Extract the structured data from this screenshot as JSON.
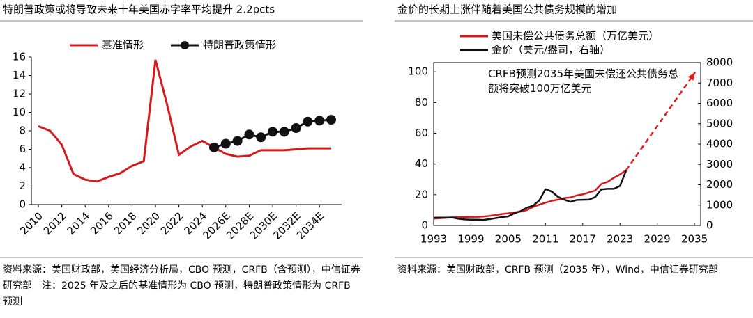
{
  "chart_data": [
    {
      "type": "line",
      "title": "特朗普政策或将导致未来十年美国赤字率平均提升 2.2pcts",
      "categories": [
        "2010",
        null,
        "2012",
        null,
        "2014",
        null,
        "2016",
        null,
        "2018",
        null,
        "2020",
        null,
        "2022",
        null,
        "2024",
        null,
        "2026E",
        null,
        "2028E",
        null,
        "2030E",
        null,
        "2032E",
        null,
        "2034E",
        null
      ],
      "series": [
        {
          "name": "基准情形",
          "color": "#d7191c",
          "marker": false,
          "values": [
            8.5,
            8.0,
            6.5,
            3.3,
            2.7,
            2.5,
            3.0,
            3.4,
            4.2,
            4.7,
            15.7,
            10.8,
            5.4,
            6.3,
            6.9,
            6.2,
            5.5,
            5.2,
            5.3,
            5.9,
            5.9,
            5.9,
            6.0,
            6.1,
            6.1,
            6.1
          ]
        },
        {
          "name": "特朗普政策情形",
          "color": "#111111",
          "marker": true,
          "values": [
            null,
            null,
            null,
            null,
            null,
            null,
            null,
            null,
            null,
            null,
            null,
            null,
            null,
            null,
            null,
            6.2,
            6.6,
            6.9,
            7.6,
            7.3,
            7.9,
            7.9,
            8.3,
            9.0,
            9.1,
            9.2
          ]
        }
      ],
      "ylim": [
        0,
        16
      ],
      "yticks": [
        0,
        2,
        4,
        6,
        8,
        10,
        12,
        14,
        16
      ],
      "source": "资料来源：美国财政部，美国经济分析局，CBO 预测，CRFB（含预测），中信证券研究部　注：2025 年及之后的基准情形为 CBO 预测，特朗普政策情形为 CRFB 预测"
    },
    {
      "type": "line",
      "title": "金价的长期上涨伴随着美国公共债务规模的增加",
      "x": [
        1993,
        1994,
        1995,
        1996,
        1997,
        1998,
        1999,
        2000,
        2001,
        2002,
        2003,
        2004,
        2005,
        2006,
        2007,
        2008,
        2009,
        2010,
        2011,
        2012,
        2013,
        2014,
        2015,
        2016,
        2017,
        2018,
        2019,
        2020,
        2021,
        2022,
        2023,
        2024
      ],
      "series": [
        {
          "name": "美国未偿公共债务总额（万亿美元）",
          "color": "#d7191c",
          "values": [
            4.4,
            4.7,
            4.9,
            5.2,
            5.4,
            5.5,
            5.6,
            5.6,
            5.8,
            6.2,
            6.8,
            7.4,
            7.9,
            8.5,
            9.0,
            10.0,
            12.0,
            13.5,
            14.8,
            16.0,
            16.8,
            17.8,
            18.2,
            19.5,
            20.2,
            21.5,
            22.7,
            27.0,
            28.4,
            31.0,
            33.2,
            36.0
          ]
        },
        {
          "name": "金价（美元/盎司，右轴）",
          "color": "#111111",
          "axis": "y2",
          "values": [
            380,
            385,
            385,
            390,
            330,
            295,
            280,
            280,
            270,
            310,
            360,
            410,
            445,
            600,
            700,
            870,
            970,
            1225,
            1780,
            1670,
            1410,
            1270,
            1160,
            1250,
            1260,
            1270,
            1390,
            1770,
            1800,
            1800,
            1940,
            2700
          ]
        }
      ],
      "annotation": "CRFB预测2035年美国未偿还公共债务总额将突破100万亿美元",
      "xlim": [
        1993,
        2036
      ],
      "xticks": [
        1993,
        1999,
        2005,
        2011,
        2017,
        2023,
        2029,
        2035
      ],
      "ylim": [
        0,
        106
      ],
      "yticks": [
        0,
        20,
        40,
        60,
        80,
        100
      ],
      "y2lim": [
        0,
        8000
      ],
      "y2ticks": [
        0,
        1000,
        2000,
        3000,
        4000,
        5000,
        6000,
        7000,
        8000
      ],
      "source": "资料来源：美国财政部，CRFB 预测（2035 年），Wind，中信证券研究部"
    }
  ]
}
